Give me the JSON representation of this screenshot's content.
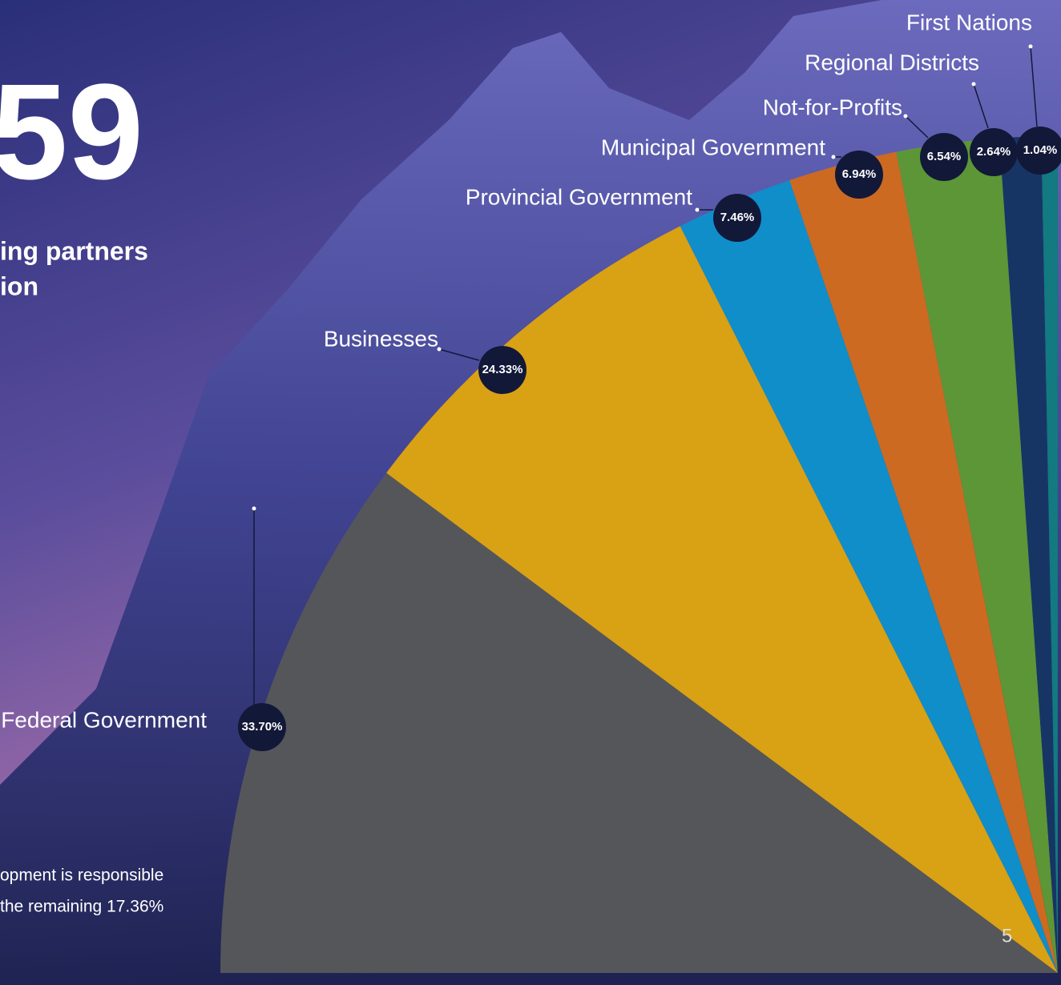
{
  "chart_data": {
    "type": "pie",
    "categories": [
      "Federal Government",
      "Businesses",
      "Provincial Government",
      "Municipal Government",
      "Not-for-Profits",
      "Regional Districts",
      "First Nations"
    ],
    "values": [
      33.7,
      24.33,
      7.46,
      6.94,
      6.54,
      2.64,
      1.04
    ],
    "value_labels": [
      "33.70%",
      "24.33%",
      "7.46%",
      "6.94%",
      "6.54%",
      "2.64%",
      "1.04%"
    ],
    "colors": [
      "#55565a",
      "#d9a114",
      "#0f8ec9",
      "#cc6a22",
      "#5c9637",
      "#163565",
      "#127a80"
    ]
  },
  "page": {
    "big_number": "59",
    "heading_lines": [
      "ing partners",
      "ion"
    ],
    "note_lines": [
      "opment is responsible",
      "the remaining 17.36%"
    ],
    "page_number": "5"
  }
}
